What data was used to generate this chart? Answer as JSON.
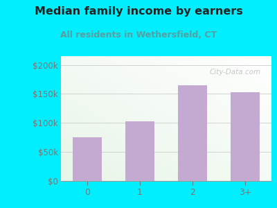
{
  "title": "Median family income by earners",
  "subtitle": "All residents in Wethersfield, CT",
  "categories": [
    "0",
    "1",
    "2",
    "3+"
  ],
  "values": [
    75000,
    103000,
    165000,
    153000
  ],
  "bar_color": "#c4aad0",
  "title_color": "#222222",
  "subtitle_color": "#5a9ea0",
  "outer_bg_color": "#00eeff",
  "plot_bg_left": "#d4ead4",
  "plot_bg_right": "#f8fff8",
  "yticks": [
    0,
    50000,
    100000,
    150000,
    200000
  ],
  "ytick_labels": [
    "$0",
    "$50k",
    "$100k",
    "$150k",
    "$200k"
  ],
  "ylim": [
    0,
    215000
  ],
  "watermark": "City-Data.com",
  "tick_color": "#777777",
  "grid_color": "#cccccc",
  "title_fontsize": 11.5,
  "subtitle_fontsize": 9
}
